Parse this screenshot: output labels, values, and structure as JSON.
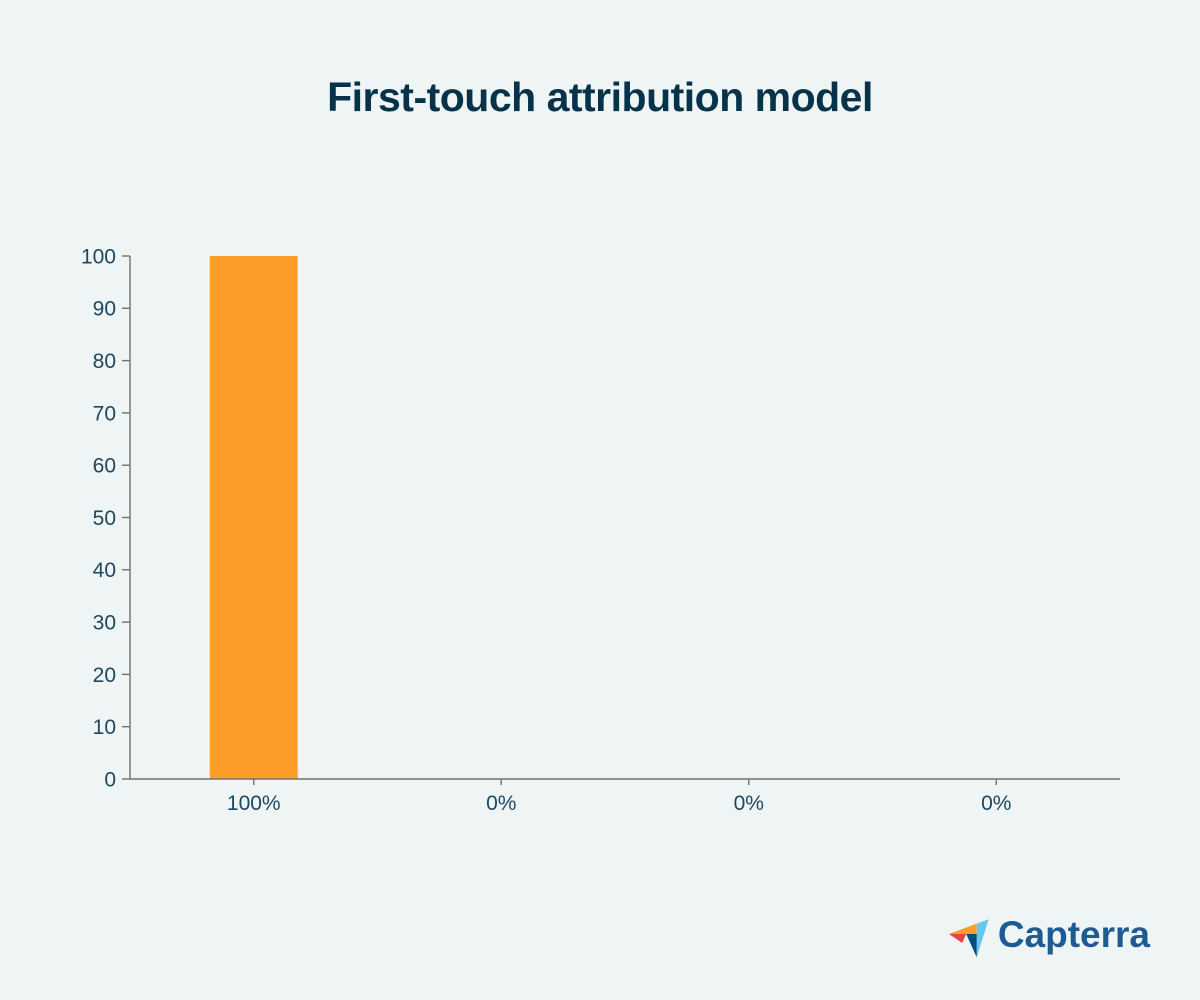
{
  "chart_data": {
    "type": "bar",
    "title": "First-touch attribution model",
    "categories": [
      "100%",
      "0%",
      "0%",
      "0%"
    ],
    "values": [
      100,
      0,
      0,
      0
    ],
    "yticks": [
      0,
      10,
      20,
      30,
      40,
      50,
      60,
      70,
      80,
      90,
      100
    ],
    "ylim": [
      0,
      100
    ],
    "xlabel": "",
    "ylabel": "",
    "grid": false,
    "legend": null,
    "bar_color": "#fd9d28"
  },
  "colors": {
    "background": "#eff5f4",
    "title": "#063349",
    "axis_label": "#1c4860",
    "axis_line": "#6e7372"
  },
  "branding": {
    "logo_text": "Capterra",
    "logo_text_color": "#1e5b94",
    "logo_mark_colors": {
      "orange": "#ff9d28",
      "red": "#e54747",
      "light_blue": "#68c5ed",
      "dark_blue": "#044d80"
    }
  }
}
